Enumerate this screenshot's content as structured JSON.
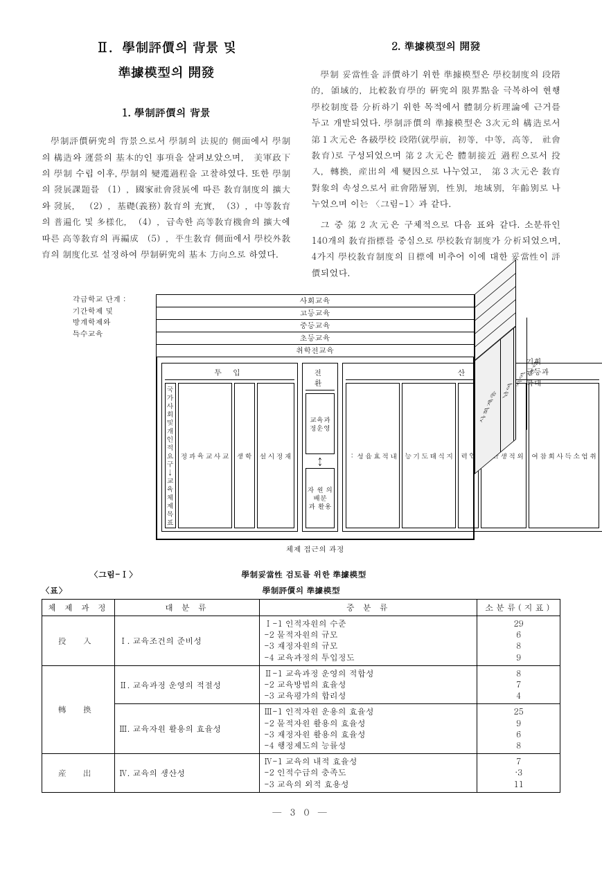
{
  "leftCol": {
    "chapterTitle": "Ⅱ．學制評價의 背景 및\n準據模型의 開發",
    "sub1": "1. 學制評價의 背景",
    "para1": "學制評價硏究의 背景으로서 學制의 法規的 側面에서 學制의 構造와 運營의 基本的인 事項을 살펴보았으며， 美軍政下의 學制 수립 이후, 學制의 變遷過程을 고찰하였다. 또한 學制의 發展課題를 （1），國家社會發展에 따른 敎育制度의 擴大와 發展， （2），基礎(義務) 敎育의 充實，（3），中等敎育의 普遍化 및 多樣化，（4），급속한 高等敎育機會의 擴大에 따른 高等敎育의 再編成 （5），平生敎育 側面에서 學校外敎育의 制度化로 설정하여 學制硏究의 基本 方向으로 하였다."
  },
  "rightCol": {
    "sub2": "2. 準據模型의 開發",
    "para2": "學制 妥當性을 評價하기 위한 準據模型은 學校制度의 段階的，領域的，比較敎育學的 硏究의 限界點을 극복하여 현행 學校制度를 分析하기 위한 목적에서 體制分析理論에 근거를 두고 개발되었다. 學制評價의 準據模型은 3次元의 構造로서 第１次元은 各級學校 段階(就學前，初等，中等，高等， 社會敎育)로 구성되었으며 第２次元은 體制接近 過程으로서 投入，轉換，産出의 세 變因으로 나누었고， 第３次元은 敎育對象의 속성으로서 社會階層別，性別，地域別，年齡別로 나누었으며 이는 〈그림-1〉과 같다.",
    "para3": "그 중 第２次元은 구체적으로 다음 표와 같다. 소분류인 140개의 敎育指標를 중심으로 學校敎育制度가 分析되었으며, 4가지 學校敎育制度의 目標에 비추어 이에 대한 妥當性이 評價되었다."
  },
  "diagram": {
    "leftNote": "각급학교 단계 :\n기간학제 및\n방계학제와\n특수교육",
    "rightNote": "기회\n균등과\n확대",
    "layers": [
      "사회교육",
      "고등교육",
      "중등교육",
      "초등교육",
      "취학전교육"
    ],
    "cols": {
      "c1": {
        "head": "투 입",
        "boxes": [
          "국가사\n회및\n개인적\n요구\n↓\n교육\n체제\n목표",
          "교\n사\n교\n육\n과\n정",
          "학\n생",
          "재\n정\n시\n설"
        ]
      },
      "c2": {
        "head": "전 환",
        "boxes": [
          "교육과정운영",
          "↕",
          "자 원 의\n배분과 활용"
        ]
      },
      "c3": {
        "head": "산 출",
        "boxes": [
          "내\n적\n효\n율\n성\n:",
          "지\n식\n태\n도\n기\n능",
          "인\n력",
          "외\n적\n생\n산\n:",
          "취\n업\n소\n득\n사\n회\n참\n여"
        ]
      }
    },
    "sideLabels": [
      "사회계층",
      "남여",
      "지역",
      "연령"
    ],
    "bottom": "체제 접근의 과정",
    "figLabel": "〈그림-Ⅰ〉",
    "figTitle": "學制妥當性 검토를 위한 準據模型"
  },
  "table": {
    "tag": "〈표〉",
    "title": "學制評價의 準據模型",
    "headers": [
      "체 제 과 정",
      "대      분      류",
      "중      분      류",
      "소분류(지표)"
    ],
    "rows": [
      {
        "proc": "投    入",
        "major": "Ⅰ. 교육조건의 준비성",
        "mid": [
          "Ⅰ-1 인적자원의 수준",
          "   -2 물적자원의 규모",
          "   -3 재정자원의 규모",
          "   -4 교육과정의 투입정도"
        ],
        "cnt": [
          "29",
          "6",
          "8",
          "9"
        ]
      },
      {
        "proc": "轉    換",
        "rowspan": 2,
        "groups": [
          {
            "major": "Ⅱ. 교육과정 운영의 적절성",
            "mid": [
              "Ⅱ-1 교육과정 운영의 적합성",
              "   -2 교육방법의 효율성",
              "   -3 교육평가의 합리성"
            ],
            "cnt": [
              "8",
              "7",
              "4"
            ]
          },
          {
            "major": "Ⅲ. 교육자원 활용의 효율성",
            "mid": [
              "Ⅲ-1 인적자원 운용의 효율성",
              "   -2 물적자원 활용의 효율성",
              "   -3 재정자원 활용의 효율성",
              "   -4 행정제도의 능률성"
            ],
            "cnt": [
              "25",
              "9",
              "6",
              "8"
            ]
          }
        ]
      },
      {
        "proc": "産    出",
        "major": "Ⅳ. 교육의 생산성",
        "mid": [
          "Ⅳ-1 교육의 내적 효율성",
          "   -2 인적수급의 충족도",
          "   -3 교육의 외적 효용성"
        ],
        "cnt": [
          "7",
          "·3",
          "11"
        ]
      }
    ]
  },
  "pageNum": "— 3 0 —"
}
